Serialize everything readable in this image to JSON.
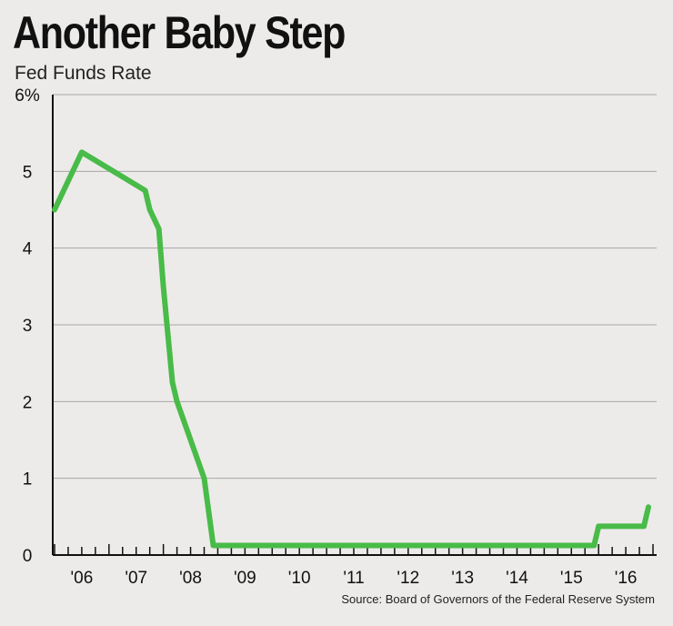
{
  "title": "Another Baby Step",
  "subtitle": "Fed Funds Rate",
  "source": "Source: Board of Governors of the Federal Reserve System",
  "colors": {
    "line": "#48bb48",
    "grid": "#a8a8a8",
    "axis": "#111111",
    "background": "#ecebe9"
  },
  "chart_data": {
    "type": "line",
    "title": "Another Baby Step",
    "subtitle": "Fed Funds Rate",
    "xlabel": "",
    "ylabel": "",
    "ylim": [
      0,
      6
    ],
    "xlim": [
      "2006-01",
      "2016-12"
    ],
    "grid": true,
    "y_ticks": [
      "0",
      "1",
      "2",
      "3",
      "4",
      "5",
      "6%"
    ],
    "x_ticks": [
      "'06",
      "'07",
      "'08",
      "'09",
      "'10",
      "'11",
      "'12",
      "'13",
      "'14",
      "'15",
      "'16"
    ],
    "series": [
      {
        "name": "",
        "color": "#48bb48",
        "points": [
          [
            "2006-01",
            4.5
          ],
          [
            "2006-07",
            5.25
          ],
          [
            "2007-09",
            4.75
          ],
          [
            "2007-10",
            4.5
          ],
          [
            "2007-12",
            4.25
          ],
          [
            "2008-01",
            3.5
          ],
          [
            "2008-03",
            2.25
          ],
          [
            "2008-04",
            2.0
          ],
          [
            "2008-10",
            1.0
          ],
          [
            "2008-12",
            0.125
          ],
          [
            "2015-12",
            0.125
          ],
          [
            "2016-01",
            0.375
          ],
          [
            "2016-11",
            0.375
          ],
          [
            "2016-12",
            0.625
          ]
        ]
      }
    ]
  }
}
